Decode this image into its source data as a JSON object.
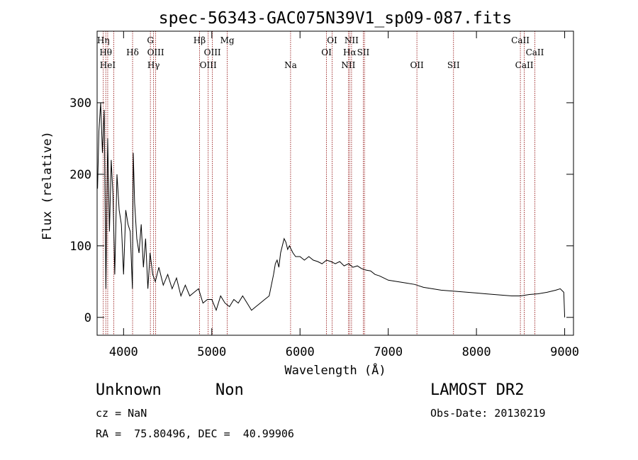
{
  "chart_data": {
    "type": "line",
    "title": "spec-56343-GAC075N39V1_sp09-087.fits",
    "xlabel": "Wavelength (Å)",
    "ylabel": "Flux (relative)",
    "xlim": [
      3700,
      9100
    ],
    "ylim": [
      -25,
      400
    ],
    "xticks": [
      4000,
      5000,
      6000,
      7000,
      8000,
      9000
    ],
    "yticks": [
      0,
      100,
      200,
      300
    ],
    "grid": false,
    "line_color": "#000000",
    "marker_color": "#8b0000",
    "series": [
      {
        "x": [
          3705,
          3720,
          3740,
          3760,
          3780,
          3800,
          3820,
          3840,
          3860,
          3880,
          3900,
          3925,
          3950,
          3975,
          4000,
          4025,
          4050,
          4075,
          4100,
          4110,
          4125,
          4150,
          4175,
          4200,
          4225,
          4250,
          4275,
          4300,
          4330,
          4360,
          4400,
          4450,
          4500,
          4550,
          4600,
          4650,
          4700,
          4750,
          4800,
          4850,
          4900,
          4950,
          5000,
          5050,
          5100,
          5150,
          5200,
          5250,
          5300,
          5350,
          5400,
          5450,
          5500,
          5550,
          5600,
          5650,
          5700,
          5720,
          5740,
          5760,
          5780,
          5800,
          5820,
          5840,
          5860,
          5880,
          5900,
          5920,
          5950,
          6000,
          6050,
          6100,
          6150,
          6200,
          6250,
          6300,
          6350,
          6400,
          6450,
          6500,
          6550,
          6600,
          6650,
          6700,
          6750,
          6800,
          6850,
          6900,
          6950,
          7000,
          7100,
          7200,
          7300,
          7400,
          7500,
          7600,
          7700,
          7800,
          7900,
          8000,
          8100,
          8200,
          8300,
          8400,
          8500,
          8600,
          8700,
          8800,
          8900,
          8950,
          8990,
          9000
        ],
        "y": [
          180,
          260,
          300,
          230,
          290,
          40,
          250,
          120,
          220,
          170,
          60,
          200,
          150,
          130,
          60,
          150,
          130,
          120,
          40,
          230,
          160,
          110,
          90,
          130,
          70,
          110,
          40,
          90,
          60,
          50,
          70,
          45,
          60,
          40,
          55,
          30,
          45,
          30,
          35,
          40,
          20,
          25,
          25,
          10,
          30,
          20,
          15,
          25,
          20,
          30,
          20,
          10,
          15,
          20,
          25,
          30,
          60,
          75,
          80,
          70,
          90,
          100,
          110,
          105,
          95,
          100,
          95,
          90,
          85,
          85,
          80,
          85,
          80,
          78,
          75,
          80,
          78,
          75,
          78,
          72,
          75,
          70,
          72,
          68,
          66,
          65,
          60,
          58,
          55,
          52,
          50,
          48,
          46,
          42,
          40,
          38,
          37,
          36,
          35,
          34,
          33,
          32,
          31,
          30,
          30,
          32,
          33,
          35,
          38,
          40,
          35,
          0
        ]
      }
    ],
    "lines": [
      {
        "x": 3770,
        "label": "Hη",
        "row": 0
      },
      {
        "x": 3798,
        "label": "Hθ",
        "row": 1
      },
      {
        "x": 3820,
        "label": "HeI",
        "row": 2
      },
      {
        "x": 3889,
        "label": "",
        "row": 2
      },
      {
        "x": 4102,
        "label": "Hδ",
        "row": 1
      },
      {
        "x": 4304,
        "label": "G",
        "row": 0
      },
      {
        "x": 4340,
        "label": "Hγ",
        "row": 2
      },
      {
        "x": 4364,
        "label": "OIII",
        "row": 1
      },
      {
        "x": 4861,
        "label": "Hβ",
        "row": 0
      },
      {
        "x": 4959,
        "label": "OIII",
        "row": 2
      },
      {
        "x": 5007,
        "label": "OIII",
        "row": 1
      },
      {
        "x": 5175,
        "label": "Mg",
        "row": 0
      },
      {
        "x": 5893,
        "label": "Na",
        "row": 2
      },
      {
        "x": 6300,
        "label": "OI",
        "row": 1
      },
      {
        "x": 6364,
        "label": "OI",
        "row": 0
      },
      {
        "x": 6548,
        "label": "NII",
        "row": 2
      },
      {
        "x": 6563,
        "label": "Hα",
        "row": 1
      },
      {
        "x": 6584,
        "label": "NII",
        "row": 0
      },
      {
        "x": 6717,
        "label": "SII",
        "row": 1
      },
      {
        "x": 6731,
        "label": "",
        "row": 1
      },
      {
        "x": 7325,
        "label": "OII",
        "row": 2
      },
      {
        "x": 7740,
        "label": "SII",
        "row": 2
      },
      {
        "x": 8498,
        "label": "CaII",
        "row": 0
      },
      {
        "x": 8542,
        "label": "CaII",
        "row": 2
      },
      {
        "x": 8662,
        "label": "CaII",
        "row": 1
      }
    ]
  },
  "info": {
    "class_label": "Unknown",
    "subclass_label": "Non",
    "survey": "LAMOST DR2",
    "cz": "cz = NaN",
    "obs_date": "Obs-Date: 20130219",
    "coords": "RA =  75.80496, DEC =  40.99906"
  }
}
